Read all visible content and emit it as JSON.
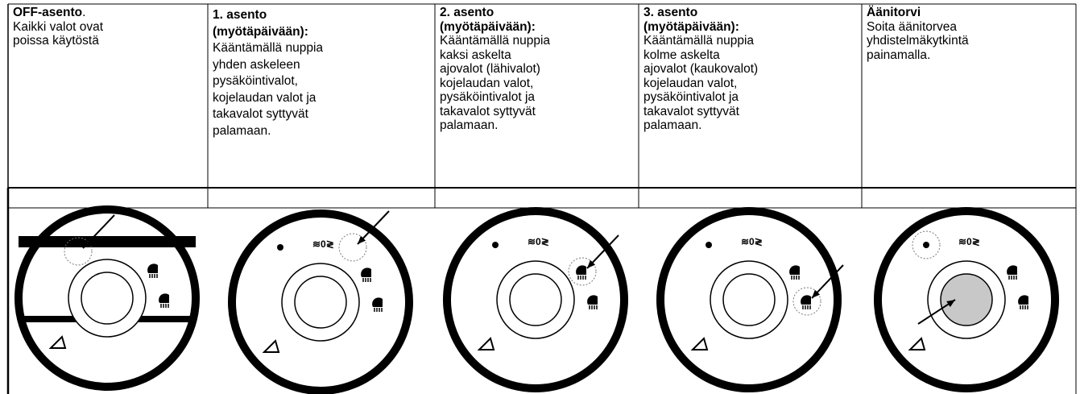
{
  "columns": [
    {
      "title": [
        "OFF-asento"
      ],
      "title_suffix": ".",
      "lines": [
        "Kaikki valot ovat",
        "poissa käytöstä"
      ]
    },
    {
      "title": [
        "1. asento",
        "(myötäpäivään):"
      ],
      "lines": [
        "Kääntämällä nuppia",
        "yhden askeleen",
        "pysäköintivalot,",
        "kojelaudan valot ja",
        "takavalot syttyvät",
        "palamaan."
      ]
    },
    {
      "title": [
        "2. asento",
        "(myötäpäivään):"
      ],
      "lines": [
        "Kääntämällä nuppia",
        "kaksi askelta",
        "ajovalot (lähivalot)",
        "kojelaudan valot,",
        "pysäköintivalot ja",
        "takavalot syttyvät",
        "palamaan."
      ]
    },
    {
      "title": [
        "3. asento",
        "(myötäpäivään):"
      ],
      "lines": [
        "Kääntämällä nuppia",
        "kolme askelta",
        "ajovalot (kaukovalot)",
        "kojelaudan valot,",
        "pysäköintivalot ja",
        "takavalot syttyvät",
        "palamaan."
      ]
    },
    {
      "title": [
        "Äänitorvi"
      ],
      "lines": [
        "Soita äänitorvea",
        "yhdistelmäkytkintä",
        "painamalla."
      ]
    }
  ]
}
